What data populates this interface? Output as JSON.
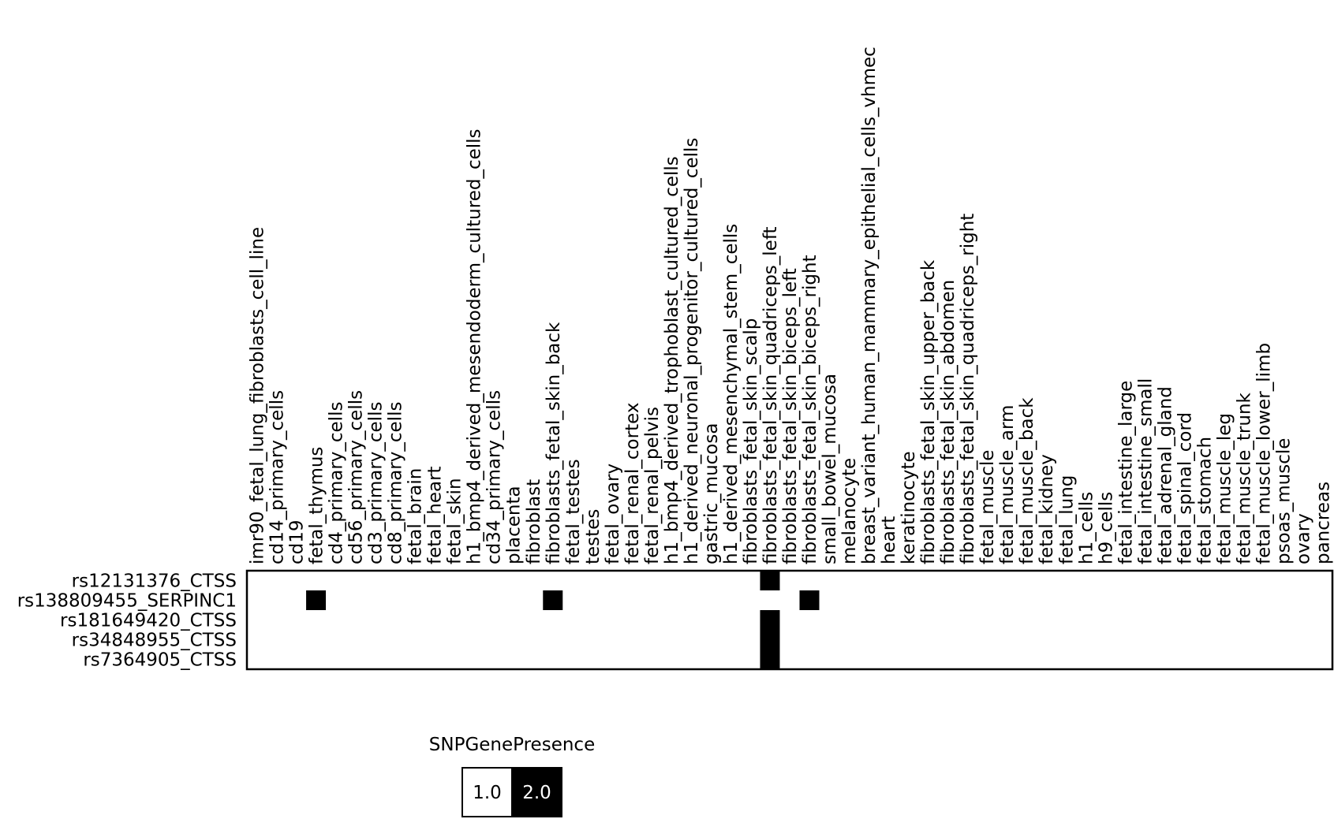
{
  "chart_data": {
    "type": "heatmap",
    "title": "",
    "columns": [
      "imr90_fetal_lung_fibroblasts_cell_line",
      "cd14_primary_cells",
      "cd19",
      "fetal_thymus",
      "cd4_primary_cells",
      "cd56_primary_cells",
      "cd3_primary_cells",
      "cd8_primary_cells",
      "fetal_brain",
      "fetal_heart",
      "fetal_skin",
      "h1_bmp4_derived_mesendoderm_cultured_cells",
      "cd34_primary_cells",
      "placenta",
      "fibroblast",
      "fibroblasts_fetal_skin_back",
      "fetal_testes",
      "testes",
      "fetal_ovary",
      "fetal_renal_cortex",
      "fetal_renal_pelvis",
      "h1_bmp4_derived_trophoblast_cultured_cells",
      "h1_derived_neuronal_progenitor_cultured_cells",
      "gastric_mucosa",
      "h1_derived_mesenchymal_stem_cells",
      "fibroblasts_fetal_skin_scalp",
      "fibroblasts_fetal_skin_quadriceps_left",
      "fibroblasts_fetal_skin_biceps_left",
      "fibroblasts_fetal_skin_biceps_right",
      "small_bowel_mucosa",
      "melanocyte",
      "breast_variant_human_mammary_epithelial_cells_vhmec",
      "heart",
      "keratinocyte",
      "fibroblasts_fetal_skin_upper_back",
      "fibroblasts_fetal_skin_abdomen",
      "fibroblasts_fetal_skin_quadriceps_right",
      "fetal_muscle",
      "fetal_muscle_arm",
      "fetal_muscle_back",
      "fetal_kidney",
      "fetal_lung",
      "h1_cells",
      "h9_cells",
      "fetal_intestine_large",
      "fetal_intestine_small",
      "fetal_adrenal_gland",
      "fetal_spinal_cord",
      "fetal_stomach",
      "fetal_muscle_leg",
      "fetal_muscle_trunk",
      "fetal_muscle_lower_limb",
      "psoas_muscle",
      "ovary",
      "pancreas"
    ],
    "rows": [
      "rs12131376_CTSS",
      "rs138809455_SERPINC1",
      "rs181649420_CTSS",
      "rs34848955_CTSS",
      "rs7364905_CTSS"
    ],
    "present_cells": [
      {
        "row": "rs12131376_CTSS",
        "column": "fibroblasts_fetal_skin_quadriceps_left",
        "value": 2.0
      },
      {
        "row": "rs138809455_SERPINC1",
        "column": "fetal_thymus",
        "value": 2.0
      },
      {
        "row": "rs138809455_SERPINC1",
        "column": "fibroblasts_fetal_skin_back",
        "value": 2.0
      },
      {
        "row": "rs138809455_SERPINC1",
        "column": "fibroblasts_fetal_skin_biceps_right",
        "value": 2.0
      },
      {
        "row": "rs181649420_CTSS",
        "column": "fibroblasts_fetal_skin_quadriceps_left",
        "value": 2.0
      },
      {
        "row": "rs34848955_CTSS",
        "column": "fibroblasts_fetal_skin_quadriceps_left",
        "value": 2.0
      },
      {
        "row": "rs7364905_CTSS",
        "column": "fibroblasts_fetal_skin_quadriceps_left",
        "value": 2.0
      }
    ],
    "default_value": 1.0,
    "legend": {
      "title": "SNPGenePresence",
      "placement": "bottom-left",
      "items": [
        {
          "label": "1.0",
          "color": "#ffffff",
          "text_color": "#000000"
        },
        {
          "label": "2.0",
          "color": "#000000",
          "text_color": "#ffffff"
        }
      ]
    },
    "colors": {
      "absent": "#ffffff",
      "present": "#000000",
      "frame": "#000000"
    }
  }
}
